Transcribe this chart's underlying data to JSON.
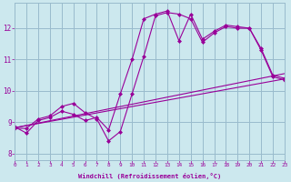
{
  "xlabel": "Windchill (Refroidissement éolien,°C)",
  "bg_color": "#cce8ee",
  "line_color": "#990099",
  "grid_color": "#99bbcc",
  "xmin": 0,
  "xmax": 23,
  "ymin": 7.8,
  "ymax": 12.8,
  "yticks": [
    8,
    9,
    10,
    11,
    12
  ],
  "xticks": [
    0,
    1,
    2,
    3,
    4,
    5,
    6,
    7,
    8,
    9,
    10,
    11,
    12,
    13,
    14,
    15,
    16,
    17,
    18,
    19,
    20,
    21,
    22,
    23
  ],
  "line1_x": [
    0,
    1,
    2,
    3,
    4,
    5,
    6,
    7,
    8,
    9,
    10,
    11,
    12,
    13,
    14,
    15,
    16,
    17,
    18,
    19,
    20,
    21,
    22,
    23
  ],
  "line1_y": [
    8.8,
    8.8,
    9.1,
    9.2,
    9.5,
    9.6,
    9.3,
    9.1,
    8.4,
    8.7,
    9.9,
    11.1,
    12.4,
    12.5,
    12.45,
    12.3,
    11.55,
    11.85,
    12.05,
    12.0,
    12.0,
    11.35,
    10.5,
    10.4
  ],
  "line2_x": [
    0,
    1,
    2,
    3,
    4,
    5,
    6,
    7,
    8,
    9,
    10,
    11,
    12,
    13,
    14,
    15,
    16,
    17,
    18,
    19,
    20,
    21,
    22,
    23
  ],
  "line2_y": [
    8.85,
    8.65,
    9.05,
    9.15,
    9.35,
    9.25,
    9.05,
    9.15,
    8.75,
    9.9,
    11.0,
    12.3,
    12.45,
    12.55,
    11.6,
    12.45,
    11.65,
    11.9,
    12.1,
    12.05,
    12.0,
    11.3,
    10.45,
    10.35
  ],
  "trend1_x": [
    0,
    23
  ],
  "trend1_y": [
    8.82,
    10.38
  ],
  "trend2_x": [
    0,
    23
  ],
  "trend2_y": [
    8.82,
    10.55
  ]
}
